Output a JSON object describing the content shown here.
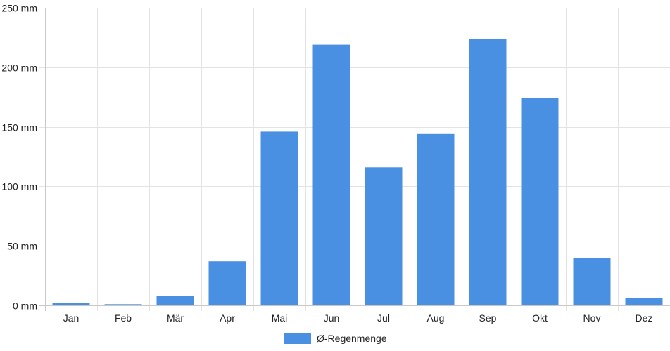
{
  "chart_data": {
    "type": "bar",
    "categories": [
      "Jan",
      "Feb",
      "Mär",
      "Apr",
      "Mai",
      "Jun",
      "Jul",
      "Aug",
      "Sep",
      "Okt",
      "Nov",
      "Dez"
    ],
    "series": [
      {
        "name": "Ø-Regenmenge",
        "color": "#4a90e2",
        "values": [
          2,
          1,
          8,
          37,
          146,
          219,
          116,
          144,
          224,
          174,
          40,
          6
        ]
      }
    ],
    "ylim": [
      0,
      250
    ],
    "yticks": [
      0,
      50,
      100,
      150,
      200,
      250
    ],
    "y_unit": "mm",
    "grid": true,
    "legend": "bottom-center"
  }
}
